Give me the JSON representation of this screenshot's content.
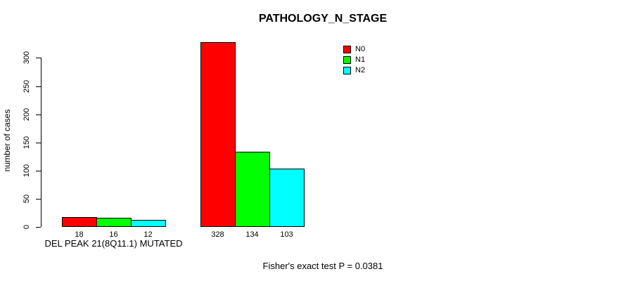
{
  "chart_data": {
    "type": "bar",
    "title": "PATHOLOGY_N_STAGE",
    "ylabel": "number of cases",
    "xlabel": "",
    "categories": [
      "DEL PEAK 21(8Q11.1) MUTATED",
      ""
    ],
    "series": [
      {
        "name": "N0",
        "color": "#ff0000",
        "values": [
          18,
          328
        ]
      },
      {
        "name": "N1",
        "color": "#00ff00",
        "values": [
          16,
          134
        ]
      },
      {
        "name": "N2",
        "color": "#00ffff",
        "values": [
          12,
          103
        ]
      }
    ],
    "bar_value_labels": [
      [
        "18",
        "16",
        "12"
      ],
      [
        "328",
        "134",
        "103"
      ]
    ],
    "yticks": [
      "0",
      "50",
      "100",
      "150",
      "200",
      "250",
      "300"
    ],
    "ylim": [
      0,
      328
    ],
    "grid": false,
    "legend": {
      "position": "top-right",
      "entries": [
        "N0",
        "N1",
        "N2"
      ]
    },
    "annotation": "Fisher's exact test P = 0.0381"
  }
}
